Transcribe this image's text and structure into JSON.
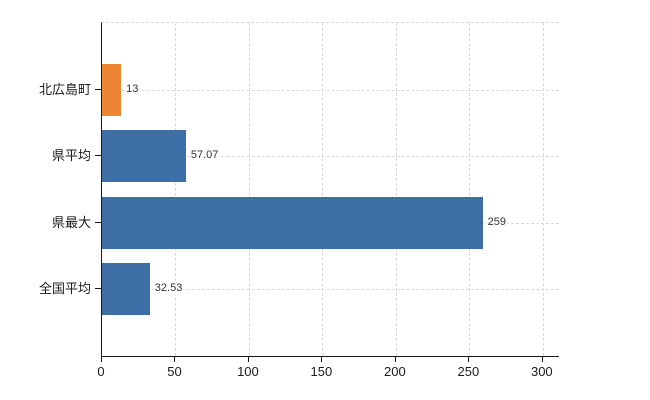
{
  "chart_data": {
    "type": "bar",
    "orientation": "horizontal",
    "title": "",
    "categories": [
      "北広島町",
      "県平均",
      "県最大",
      "全国平均"
    ],
    "values": [
      13,
      57.07,
      259,
      32.53
    ],
    "value_labels": [
      "13",
      "57.07",
      "259",
      "32.53"
    ],
    "bar_colors": [
      "#ed8633",
      "#3d6ea5",
      "#3d6ea5",
      "#3d6ea5"
    ],
    "x_tick_values": [
      0,
      50,
      100,
      150,
      200,
      250,
      300
    ],
    "x_tick_labels": [
      "0",
      "50",
      "100",
      "150",
      "200",
      "250",
      "300"
    ],
    "xlim": [
      0,
      311
    ],
    "grid": true,
    "legend": false,
    "background_color": "#ffffff",
    "axis_color": "#1a1a1a",
    "grid_color": "#d9d9d9",
    "value_label_color": "#333333",
    "tick_label_color": "#1a1a1a"
  }
}
